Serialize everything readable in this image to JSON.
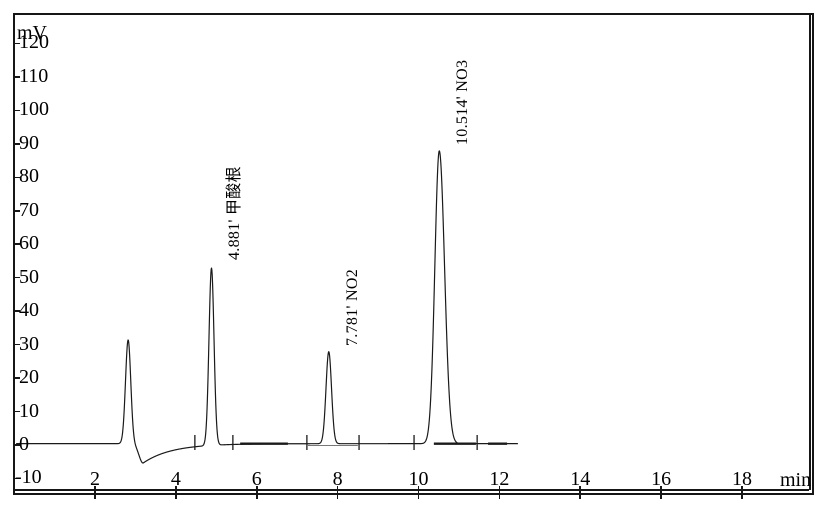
{
  "figure": {
    "kind": "ion-chromatography chromatogram",
    "background_color": "#ffffff",
    "frame_color": "#161616",
    "trace_color": "#1a1a1a"
  },
  "chart_data": {
    "type": "line",
    "title": "",
    "x_axis": {
      "label": "min",
      "ticks": [
        2,
        4,
        6,
        8,
        10,
        12,
        14,
        16,
        18
      ],
      "range": [
        0,
        19.8
      ],
      "grid": false
    },
    "y_axis": {
      "label": "mV",
      "ticks": [
        120,
        110,
        100,
        90,
        80,
        70,
        60,
        50,
        40,
        30,
        20,
        10,
        0,
        -10
      ],
      "range": [
        -10,
        120
      ],
      "grid": false
    },
    "legend": "none",
    "baseline_mV": 0.4,
    "trace_range_min": [
      0.05,
      12.46
    ],
    "peaks": [
      {
        "retention_time": 2.82,
        "height_mV": 31,
        "sigma_min": 0.065,
        "label": "",
        "dip": {
          "time": 3.19,
          "depth_mV": 5.8,
          "sigma_min": 0.1,
          "tau_min": 0.7
        }
      },
      {
        "retention_time": 4.881,
        "height_mV": 53,
        "sigma_min": 0.062,
        "label": "4.881' 甲酸根"
      },
      {
        "retention_time": 7.781,
        "height_mV": 27.5,
        "sigma_min": 0.068,
        "label": "7.781' NO2"
      },
      {
        "retention_time": 10.514,
        "height_mV": 87.5,
        "sigma_min": 0.11,
        "tail_sigma_min": 0.13,
        "label": "10.514' NO3"
      }
    ],
    "integration_marks_min": [
      4.47,
      5.41,
      7.24,
      8.53,
      9.89,
      11.45
    ],
    "bold_baseline_segments_min": [
      [
        5.59,
        6.77
      ],
      [
        10.38,
        11.42
      ],
      [
        11.72,
        12.19
      ]
    ],
    "integration_baseline_min": [
      [
        7.24,
        8.5
      ]
    ]
  }
}
